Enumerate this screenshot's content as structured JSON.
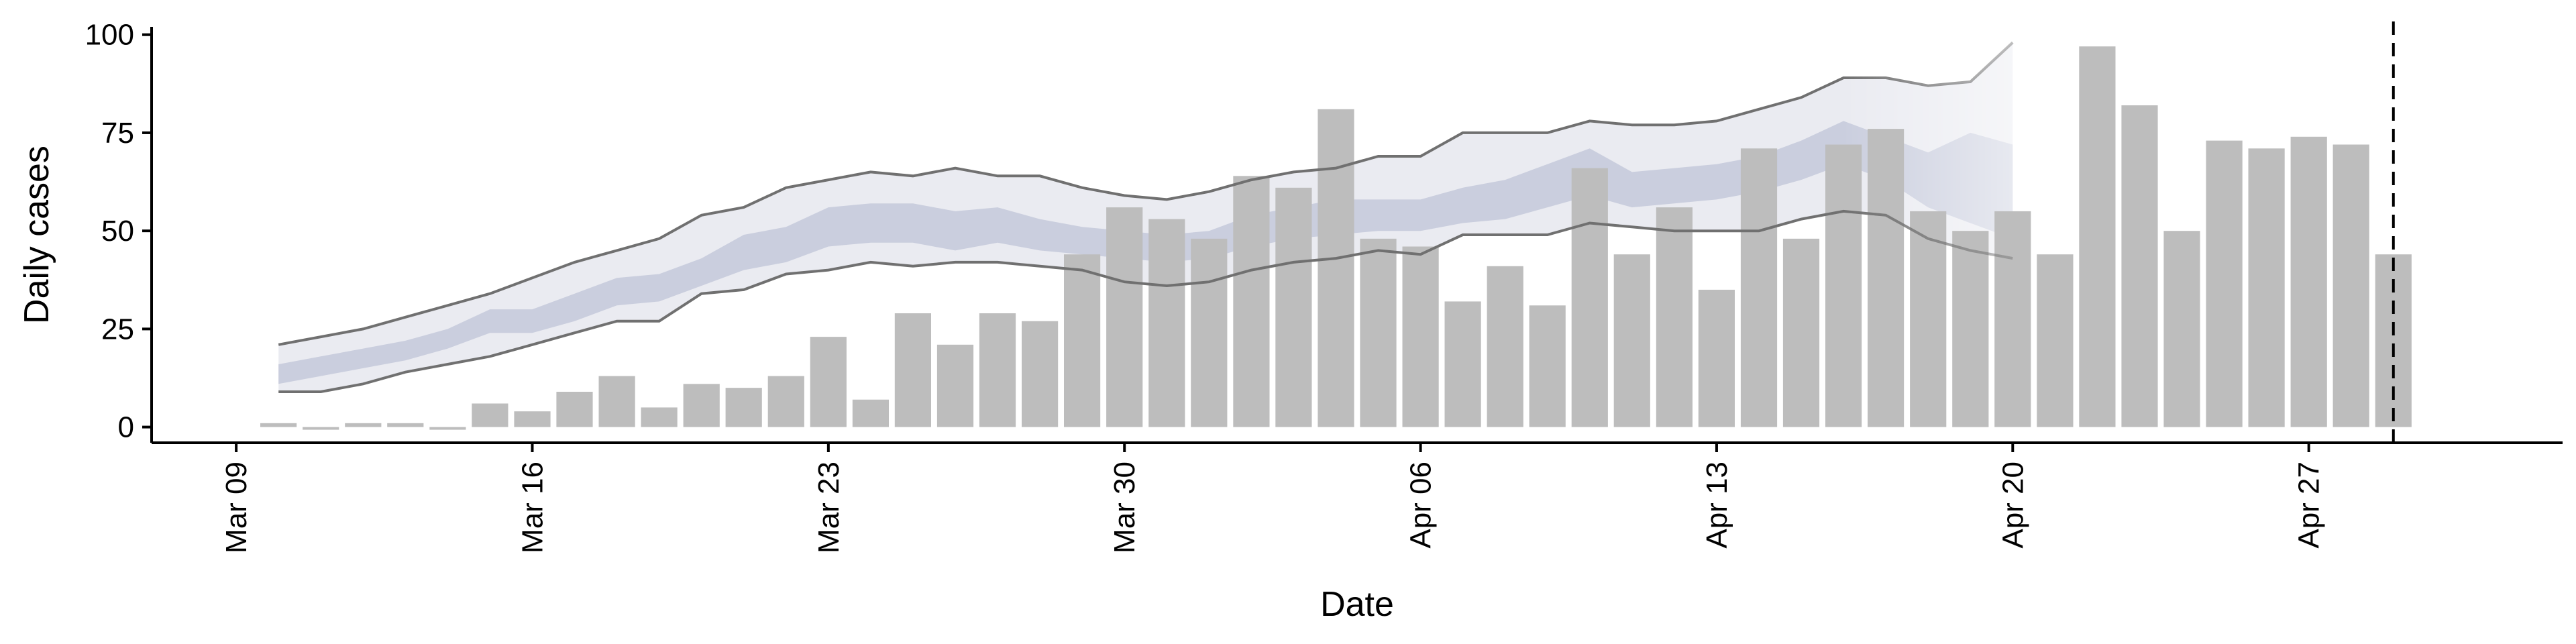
{
  "chart_data": {
    "type": "bar",
    "xlabel": "Date",
    "ylabel": "Daily cases",
    "ylim": [
      -4,
      102
    ],
    "x_range": [
      "2020-03-07",
      "2020-05-03"
    ],
    "y_ticks": [
      0,
      25,
      50,
      75,
      100
    ],
    "x_ticks": [
      {
        "date": "2020-03-09",
        "label": "Mar 09"
      },
      {
        "date": "2020-03-16",
        "label": "Mar 16"
      },
      {
        "date": "2020-03-23",
        "label": "Mar 23"
      },
      {
        "date": "2020-03-30",
        "label": "Mar 30"
      },
      {
        "date": "2020-04-06",
        "label": "Apr 06"
      },
      {
        "date": "2020-04-13",
        "label": "Apr 13"
      },
      {
        "date": "2020-04-20",
        "label": "Apr 20"
      },
      {
        "date": "2020-04-27",
        "label": "Apr 27"
      }
    ],
    "grid": false,
    "legend": "none",
    "cases": {
      "start_date": "2020-03-10",
      "values": [
        1,
        0,
        1,
        1,
        0,
        6,
        4,
        9,
        13,
        5,
        11,
        10,
        13,
        23,
        7,
        29,
        21,
        29,
        27,
        44,
        56,
        53,
        48,
        64,
        61,
        81,
        48,
        46,
        32,
        41,
        31,
        66,
        44,
        56,
        35,
        71,
        48,
        72,
        76,
        55,
        50,
        55,
        44,
        97,
        82,
        50,
        73,
        71,
        74,
        72,
        44
      ],
      "color": "#bdbdbd"
    },
    "estimate": {
      "start_date": "2020-03-10",
      "outer_lower": [
        9,
        9,
        11,
        14,
        16,
        18,
        21,
        24,
        27,
        27,
        34,
        35,
        39,
        40,
        42,
        41,
        42,
        42,
        41,
        40,
        37,
        36,
        37,
        40,
        42,
        43,
        45,
        44,
        49,
        49,
        49,
        52,
        51,
        50,
        50,
        50,
        53,
        55,
        54,
        48,
        45,
        43
      ],
      "outer_upper": [
        21,
        23,
        25,
        28,
        31,
        34,
        38,
        42,
        45,
        48,
        54,
        56,
        61,
        63,
        65,
        64,
        66,
        64,
        64,
        61,
        59,
        58,
        60,
        63,
        65,
        66,
        69,
        69,
        75,
        75,
        75,
        78,
        77,
        77,
        78,
        81,
        84,
        89,
        89,
        87,
        88,
        98
      ],
      "inner_lower": [
        11,
        13,
        15,
        17,
        20,
        24,
        24,
        27,
        31,
        32,
        36,
        40,
        42,
        46,
        47,
        47,
        45,
        47,
        45,
        44,
        43,
        42,
        43,
        46,
        48,
        49,
        50,
        50,
        52,
        53,
        56,
        59,
        56,
        57,
        58,
        60,
        63,
        67,
        63,
        56,
        52,
        48
      ],
      "inner_upper": [
        16,
        18,
        20,
        22,
        25,
        30,
        30,
        34,
        38,
        39,
        43,
        49,
        51,
        56,
        57,
        57,
        55,
        56,
        53,
        51,
        50,
        49,
        50,
        54,
        56,
        58,
        58,
        58,
        61,
        63,
        67,
        71,
        65,
        66,
        67,
        69,
        73,
        78,
        74,
        70,
        75,
        72
      ],
      "outer_fill": "#eaebf1",
      "inner_fill": "#c6cbdb",
      "line_color": "#707070",
      "faded_from_date": "2020-04-16"
    },
    "cutoff_date": "2020-04-29"
  }
}
